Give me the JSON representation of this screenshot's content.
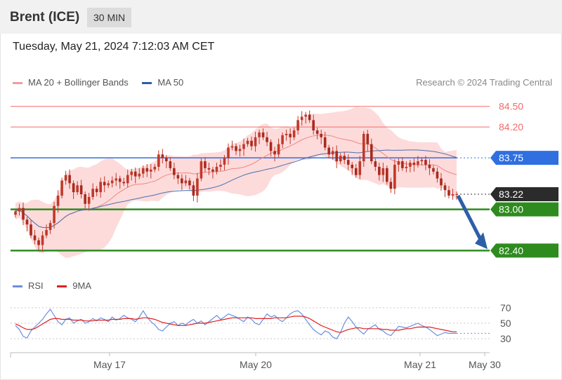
{
  "header": {
    "instrument": "Brent (ICE)",
    "timeframe": "30 MIN"
  },
  "datetime": "Tuesday, May 21, 2024 7:12:03 AM CET",
  "legend": {
    "ma20": "MA 20 + Bollinger Bands",
    "ma50": "MA 50",
    "research": "Research © 2024 Trading Central"
  },
  "rsi_legend": {
    "rsi": "RSI",
    "ma9": "9MA"
  },
  "colors": {
    "candle": "#c0392b",
    "band_fill": "#fdd5d5",
    "ma20": "#f08585",
    "ma50": "#4a6fb0",
    "support": "#2e8b1e",
    "resistance_blue": "#2f6fe0",
    "resistance_red": "#f26b6b",
    "last_price": "#2b2b2b",
    "arrow": "#2d5fa8",
    "rsi": "#6a8fe0",
    "rsi_ma": "#e02020"
  },
  "chart_data": [
    {
      "type": "candlestick",
      "title": "Brent (ICE)",
      "timeframe": "30 MIN",
      "x_ticks": [
        "May 17",
        "May 20",
        "May 21",
        "May 30"
      ],
      "ylim": [
        82.25,
        84.62
      ],
      "levels": [
        {
          "value": 84.5,
          "label": "84.50",
          "kind": "resistance"
        },
        {
          "value": 84.2,
          "label": "84.20",
          "kind": "resistance"
        },
        {
          "value": 83.75,
          "label": "83.75",
          "kind": "pivot"
        },
        {
          "value": 83.22,
          "label": "83.22",
          "kind": "last"
        },
        {
          "value": 83.0,
          "label": "83.00",
          "kind": "support"
        },
        {
          "value": 82.4,
          "label": "82.40",
          "kind": "support"
        }
      ],
      "close": [
        82.97,
        83.02,
        82.85,
        82.78,
        82.62,
        82.55,
        82.48,
        82.62,
        82.7,
        82.8,
        83.05,
        83.2,
        83.42,
        83.5,
        83.38,
        83.25,
        83.35,
        83.22,
        83.08,
        83.18,
        83.3,
        83.25,
        83.4,
        83.35,
        83.38,
        83.42,
        83.45,
        83.4,
        83.38,
        83.5,
        83.55,
        83.48,
        83.52,
        83.6,
        83.55,
        83.58,
        83.62,
        83.8,
        83.75,
        83.7,
        83.6,
        83.5,
        83.45,
        83.38,
        83.42,
        83.35,
        83.2,
        83.45,
        83.7,
        83.6,
        83.58,
        83.55,
        83.62,
        83.65,
        83.75,
        83.9,
        83.92,
        83.85,
        83.88,
        83.95,
        84.0,
        83.92,
        84.05,
        84.12,
        84.05,
        83.98,
        83.85,
        83.8,
        83.95,
        84.08,
        84.1,
        84.05,
        84.15,
        84.3,
        84.35,
        84.38,
        84.3,
        84.15,
        84.1,
        84.05,
        83.9,
        83.8,
        83.85,
        83.7,
        83.78,
        83.72,
        83.65,
        83.6,
        83.5,
        83.7,
        84.1,
        83.95,
        83.7,
        83.62,
        83.5,
        83.6,
        83.4,
        83.3,
        83.65,
        83.7,
        83.6,
        83.62,
        83.68,
        83.65,
        83.7,
        83.72,
        83.65,
        83.6,
        83.55,
        83.45,
        83.35,
        83.28,
        83.2,
        83.22,
        83.22
      ],
      "series": [
        {
          "name": "MA 20 + Bollinger Bands",
          "indicator": "ma20"
        },
        {
          "name": "MA 50",
          "indicator": "ma50"
        }
      ]
    },
    {
      "type": "line",
      "ylim": [
        22,
        78
      ],
      "y_ticks": [
        70,
        50,
        30
      ],
      "series": [
        {
          "name": "RSI",
          "values": [
            47,
            42,
            33,
            31,
            40,
            45,
            50,
            55,
            62,
            68,
            60,
            52,
            48,
            55,
            57,
            50,
            53,
            55,
            50,
            52,
            56,
            53,
            57,
            55,
            52,
            58,
            54,
            56,
            60,
            57,
            55,
            52,
            58,
            66,
            58,
            52,
            48,
            42,
            40,
            45,
            50,
            52,
            47,
            50,
            48,
            52,
            55,
            50,
            53,
            48,
            52,
            56,
            60,
            55,
            58,
            62,
            60,
            58,
            55,
            52,
            58,
            55,
            50,
            48,
            55,
            62,
            58,
            60,
            55,
            52,
            57,
            62,
            65,
            66,
            62,
            55,
            48,
            42,
            38,
            35,
            40,
            38,
            32,
            30,
            38,
            50,
            58,
            52,
            45,
            40,
            36,
            42,
            45,
            48,
            42,
            40,
            36,
            34,
            40,
            46,
            45,
            44,
            46,
            48,
            50,
            47,
            45,
            42,
            38,
            34,
            36,
            38,
            37,
            37,
            37
          ]
        },
        {
          "name": "9MA",
          "values": [
            49,
            47,
            44,
            42,
            42,
            43,
            46,
            49,
            52,
            55,
            56,
            56,
            55,
            55,
            55,
            54,
            54,
            54,
            53,
            53,
            53,
            54,
            54,
            54,
            54,
            55,
            55,
            55,
            56,
            56,
            56,
            55,
            56,
            57,
            57,
            56,
            55,
            53,
            51,
            50,
            49,
            48,
            47,
            47,
            47,
            48,
            49,
            50,
            50,
            50,
            51,
            52,
            53,
            54,
            55,
            56,
            57,
            57,
            57,
            57,
            57,
            57,
            56,
            56,
            56,
            56,
            56,
            57,
            57,
            57,
            57,
            58,
            59,
            59,
            59,
            58,
            56,
            53,
            50,
            47,
            45,
            43,
            41,
            39,
            38,
            40,
            42,
            43,
            44,
            44,
            43,
            43,
            43,
            43,
            43,
            42,
            42,
            41,
            41,
            41,
            42,
            43,
            43,
            44,
            45,
            45,
            45,
            45,
            44,
            43,
            42,
            41,
            40,
            39,
            39
          ]
        }
      ]
    }
  ]
}
